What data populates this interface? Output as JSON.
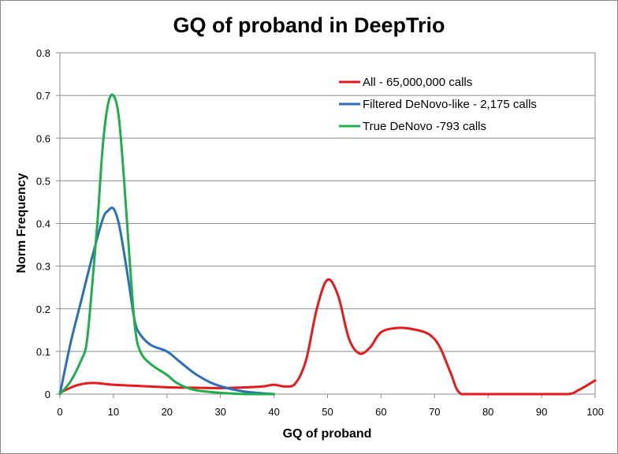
{
  "chart_data": {
    "type": "line",
    "title": "GQ of proband in DeepTrio",
    "xlabel": "GQ of proband",
    "ylabel": "Norm Frequency",
    "xlim": [
      0,
      100
    ],
    "ylim": [
      0,
      0.8
    ],
    "x_ticks": [
      "0",
      "10",
      "20",
      "30",
      "40",
      "50",
      "60",
      "70",
      "80",
      "90",
      "100"
    ],
    "y_ticks": [
      "0",
      "0.1",
      "0.2",
      "0.3",
      "0.4",
      "0.5",
      "0.6",
      "0.7",
      "0.8"
    ],
    "grid": "horizontal",
    "legend_position": "top-right",
    "series": [
      {
        "name": "All - 65,000,000 calls",
        "color": "#e41a1c",
        "x": [
          0,
          3,
          6,
          10,
          15,
          20,
          25,
          30,
          35,
          38,
          40,
          42,
          44,
          46,
          48,
          50,
          52,
          54,
          56,
          58,
          60,
          63,
          66,
          69,
          71,
          73,
          75,
          80,
          90,
          95,
          97,
          100
        ],
        "y": [
          0.003,
          0.02,
          0.026,
          0.022,
          0.019,
          0.016,
          0.015,
          0.014,
          0.016,
          0.018,
          0.022,
          0.018,
          0.025,
          0.08,
          0.2,
          0.268,
          0.23,
          0.13,
          0.095,
          0.11,
          0.145,
          0.155,
          0.152,
          0.14,
          0.11,
          0.05,
          0.0,
          0.0,
          0.0,
          0.0,
          0.01,
          0.032
        ]
      },
      {
        "name": "Filtered DeNovo-like - 2,175 calls",
        "color": "#2b6fb8",
        "x": [
          0,
          2,
          4,
          6,
          8,
          9,
          10,
          11,
          12,
          13,
          14,
          15,
          17,
          20,
          22,
          25,
          28,
          31,
          35,
          40
        ],
        "y": [
          0.0,
          0.12,
          0.22,
          0.32,
          0.41,
          0.43,
          0.435,
          0.4,
          0.33,
          0.25,
          0.17,
          0.14,
          0.115,
          0.1,
          0.08,
          0.05,
          0.028,
          0.015,
          0.005,
          0.0
        ]
      },
      {
        "name": "True DeNovo -793 calls",
        "color": "#1fae4b",
        "x": [
          0,
          2,
          4,
          5,
          6,
          7,
          8,
          9,
          10,
          11,
          12,
          13,
          14,
          15,
          17,
          20,
          22,
          25,
          30,
          35,
          40
        ],
        "y": [
          0.0,
          0.03,
          0.08,
          0.12,
          0.25,
          0.4,
          0.58,
          0.68,
          0.7,
          0.65,
          0.5,
          0.32,
          0.16,
          0.1,
          0.07,
          0.045,
          0.025,
          0.01,
          0.003,
          0.0,
          0.0
        ]
      }
    ]
  }
}
